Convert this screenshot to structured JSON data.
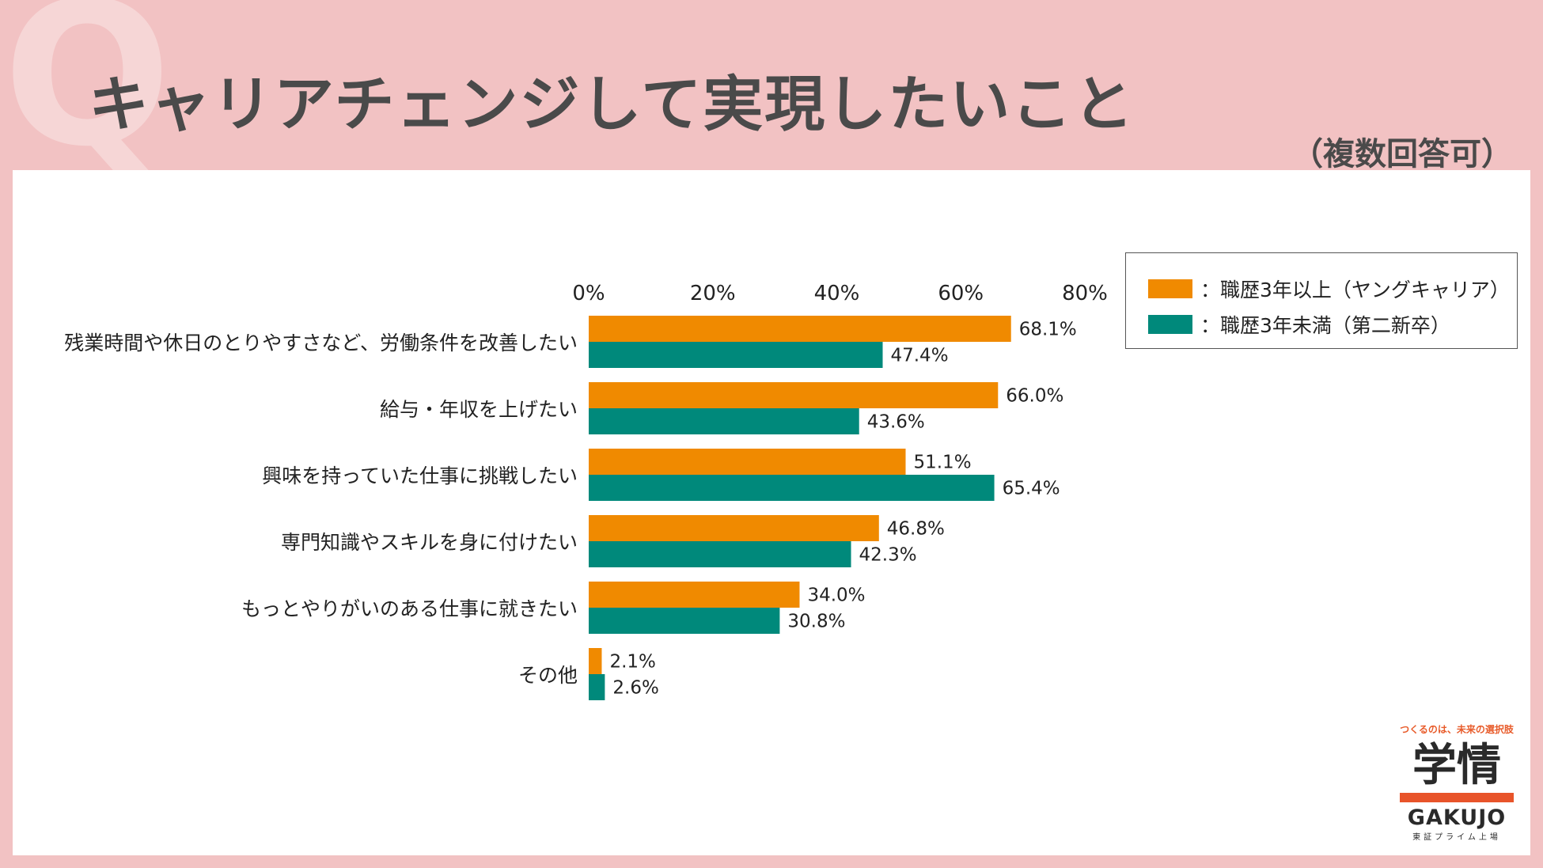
{
  "header": {
    "q_mark": "Q",
    "title": "キャリアチェンジして実現したいこと",
    "subtitle": "（複数回答可）"
  },
  "chart_data": {
    "type": "bar",
    "orientation": "horizontal",
    "categories": [
      "残業時間や休日のとりやすさなど、労働条件を改善したい",
      "給与・年収を上げたい",
      "興味を持っていた仕事に挑戦したい",
      "専門知識やスキルを身に付けたい",
      "もっとやりがいのある仕事に就きたい",
      "その他"
    ],
    "series": [
      {
        "name": "：職歴3年以上（ヤングキャリア）",
        "color": "#f08a00",
        "values": [
          68.1,
          66.0,
          51.1,
          46.8,
          34.0,
          2.1
        ]
      },
      {
        "name": "：職歴3年未満（第二新卒）",
        "color": "#00897b",
        "values": [
          47.4,
          43.6,
          65.4,
          42.3,
          30.8,
          2.6
        ]
      }
    ],
    "xlim": [
      0,
      80
    ],
    "xticks": [
      "0%",
      "20%",
      "40%",
      "60%",
      "80%"
    ],
    "tick_values": [
      0,
      20,
      40,
      60,
      80
    ],
    "value_suffix": "%",
    "axis_position": "top",
    "legend_position": "right",
    "grid": false
  },
  "logo": {
    "tagline": "つくるのは、未来の選択肢",
    "kanji": "学情",
    "name": "GAKUJO",
    "sub": "東証プライム上場"
  }
}
